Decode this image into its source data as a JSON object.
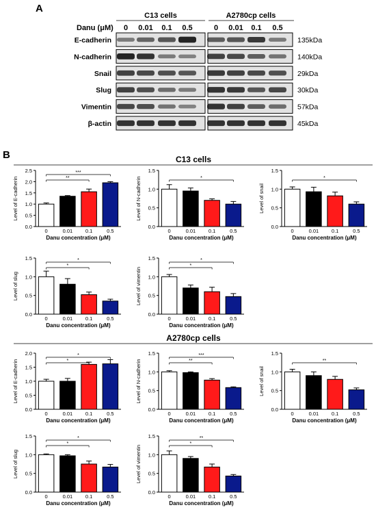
{
  "panel_a": {
    "label": "A",
    "header_treatment": "Danu (μM)",
    "cell_lines": [
      "C13 cells",
      "A2780cp  cells"
    ],
    "doses": [
      "0",
      "0.01",
      "0.1",
      "0.5"
    ],
    "rows": [
      {
        "protein": "E-cadherin",
        "size": "135kDa",
        "c13": [
          0.35,
          0.5,
          0.6,
          0.95
        ],
        "a2780": [
          0.55,
          0.6,
          0.8,
          0.35
        ]
      },
      {
        "protein": "N-cadherin",
        "size": "140kDa",
        "c13": [
          0.95,
          0.85,
          0.35,
          0.3
        ],
        "a2780": [
          0.75,
          0.7,
          0.55,
          0.4
        ]
      },
      {
        "protein": "Snail",
        "size": "29kDa",
        "c13": [
          0.75,
          0.7,
          0.65,
          0.6
        ],
        "a2780": [
          0.8,
          0.75,
          0.7,
          0.65
        ]
      },
      {
        "protein": "Slug",
        "size": "30kDa",
        "c13": [
          0.75,
          0.65,
          0.45,
          0.35
        ],
        "a2780": [
          0.85,
          0.8,
          0.6,
          0.7
        ]
      },
      {
        "protein": "Vimentin",
        "size": "57kDa",
        "c13": [
          0.7,
          0.65,
          0.4,
          0.3
        ],
        "a2780": [
          0.85,
          0.75,
          0.55,
          0.45
        ]
      },
      {
        "protein": "β-actin",
        "size": "45kDa",
        "c13": [
          0.85,
          0.85,
          0.85,
          0.85
        ],
        "a2780": [
          0.85,
          0.85,
          0.85,
          0.85
        ]
      }
    ]
  },
  "panel_b": {
    "label": "B",
    "group_titles": [
      "C13 cells",
      "A2780cp cells"
    ]
  },
  "colors": {
    "bar_0": "#ffffff",
    "bar_0.01": "#000000",
    "bar_0.1": "#ff1a1a",
    "bar_0.5": "#0a1a8c"
  },
  "chart_data": [
    {
      "type": "bar",
      "group": "C13 cells",
      "ylabel": "Level of E-cadherin",
      "xlabel": "Danu concentration (μM)",
      "categories": [
        "0",
        "0.01",
        "0.1",
        "0.5"
      ],
      "values": [
        1.0,
        1.35,
        1.55,
        1.95
      ],
      "errors": [
        0.05,
        0.03,
        0.12,
        0.05
      ],
      "ylim": [
        0,
        2.5
      ],
      "yticks": [
        "0.0",
        "0.5",
        "1.0",
        "1.5",
        "2.0",
        "2.5"
      ],
      "significance": [
        {
          "from": "0",
          "to": "0.1",
          "label": "**"
        },
        {
          "from": "0",
          "to": "0.5",
          "label": "***"
        }
      ]
    },
    {
      "type": "bar",
      "group": "C13 cells",
      "ylabel": "Level of N-cadherin",
      "xlabel": "Danu concentration (μM)",
      "categories": [
        "0",
        "0.01",
        "0.1",
        "0.5"
      ],
      "values": [
        1.0,
        0.95,
        0.7,
        0.6
      ],
      "errors": [
        0.12,
        0.08,
        0.04,
        0.07
      ],
      "ylim": [
        0,
        1.5
      ],
      "yticks": [
        "0.0",
        "0.5",
        "1.0",
        "1.5"
      ],
      "significance": [
        {
          "from": "0",
          "to": "0.5",
          "label": "*"
        }
      ]
    },
    {
      "type": "bar",
      "group": "C13 cells",
      "ylabel": "Level of snail",
      "xlabel": "Danu concentration (μM)",
      "categories": [
        "0",
        "0.01",
        "0.1",
        "0.5"
      ],
      "values": [
        1.0,
        0.93,
        0.82,
        0.6
      ],
      "errors": [
        0.06,
        0.12,
        0.1,
        0.06
      ],
      "ylim": [
        0,
        1.5
      ],
      "yticks": [
        "0.0",
        "0.5",
        "1.0",
        "1.5"
      ],
      "significance": [
        {
          "from": "0",
          "to": "0.5",
          "label": "*"
        }
      ]
    },
    {
      "type": "bar",
      "group": "C13 cells",
      "ylabel": "Level of slug",
      "xlabel": "Danu concentration (μM)",
      "categories": [
        "0",
        "0.01",
        "0.1",
        "0.5"
      ],
      "values": [
        1.0,
        0.8,
        0.52,
        0.35
      ],
      "errors": [
        0.15,
        0.15,
        0.07,
        0.05
      ],
      "ylim": [
        0,
        1.5
      ],
      "yticks": [
        "0.0",
        "0.5",
        "1.0",
        "1.5"
      ],
      "significance": [
        {
          "from": "0",
          "to": "0.1",
          "label": "*"
        },
        {
          "from": "0",
          "to": "0.5",
          "label": "*"
        }
      ]
    },
    {
      "type": "bar",
      "group": "C13 cells",
      "ylabel": "Level of vimentin",
      "xlabel": "Danu concentration (μM)",
      "categories": [
        "0",
        "0.01",
        "0.1",
        "0.5"
      ],
      "values": [
        1.0,
        0.7,
        0.6,
        0.47
      ],
      "errors": [
        0.06,
        0.08,
        0.12,
        0.08
      ],
      "ylim": [
        0,
        1.5
      ],
      "yticks": [
        "0.0",
        "0.5",
        "1.0",
        "1.5"
      ],
      "significance": [
        {
          "from": "0",
          "to": "0.1",
          "label": "*"
        },
        {
          "from": "0",
          "to": "0.5",
          "label": "*"
        }
      ]
    },
    {
      "type": "bar",
      "group": "A2780cp cells",
      "ylabel": "Level of E-cadherin",
      "xlabel": "Danu concentration (μM)",
      "categories": [
        "0",
        "0.01",
        "0.1",
        "0.5"
      ],
      "values": [
        1.0,
        1.0,
        1.6,
        1.62
      ],
      "errors": [
        0.07,
        0.1,
        0.08,
        0.15
      ],
      "ylim": [
        0,
        2.0
      ],
      "yticks": [
        "0.0",
        "0.5",
        "1.0",
        "1.5",
        "2.0"
      ],
      "significance": [
        {
          "from": "0",
          "to": "0.1",
          "label": "*"
        },
        {
          "from": "0",
          "to": "0.5",
          "label": "*"
        }
      ]
    },
    {
      "type": "bar",
      "group": "A2780cp cells",
      "ylabel": "Level of N-cadherin",
      "xlabel": "Danu concentration (μM)",
      "categories": [
        "0",
        "0.01",
        "0.1",
        "0.5"
      ],
      "values": [
        1.0,
        0.98,
        0.78,
        0.58
      ],
      "errors": [
        0.03,
        0.02,
        0.04,
        0.02
      ],
      "ylim": [
        0,
        1.5
      ],
      "yticks": [
        "0.0",
        "0.5",
        "1.0",
        "1.5"
      ],
      "significance": [
        {
          "from": "0",
          "to": "0.1",
          "label": "**"
        },
        {
          "from": "0",
          "to": "0.5",
          "label": "***"
        }
      ]
    },
    {
      "type": "bar",
      "group": "A2780cp cells",
      "ylabel": "Level of snail",
      "xlabel": "Danu concentration (μM)",
      "categories": [
        "0",
        "0.01",
        "0.1",
        "0.5"
      ],
      "values": [
        1.0,
        0.9,
        0.8,
        0.52
      ],
      "errors": [
        0.07,
        0.1,
        0.08,
        0.05
      ],
      "ylim": [
        0,
        1.5
      ],
      "yticks": [
        "0.0",
        "0.5",
        "1.0",
        "1.5"
      ],
      "significance": [
        {
          "from": "0",
          "to": "0.5",
          "label": "**"
        }
      ]
    },
    {
      "type": "bar",
      "group": "A2780cp cells",
      "ylabel": "Level of slug",
      "xlabel": "Danu concentration (μM)",
      "categories": [
        "0",
        "0.01",
        "0.1",
        "0.5"
      ],
      "values": [
        1.0,
        0.97,
        0.75,
        0.67
      ],
      "errors": [
        0.02,
        0.03,
        0.08,
        0.07
      ],
      "ylim": [
        0,
        1.5
      ],
      "yticks": [
        "0.0",
        "0.5",
        "1.0",
        "1.5"
      ],
      "significance": [
        {
          "from": "0",
          "to": "0.1",
          "label": "*"
        },
        {
          "from": "0",
          "to": "0.5",
          "label": "*"
        }
      ]
    },
    {
      "type": "bar",
      "group": "A2780cp cells",
      "ylabel": "Level of vimentin",
      "xlabel": "Danu concentration (μM)",
      "categories": [
        "0",
        "0.01",
        "0.1",
        "0.5"
      ],
      "values": [
        1.0,
        0.9,
        0.67,
        0.43
      ],
      "errors": [
        0.1,
        0.05,
        0.08,
        0.04
      ],
      "ylim": [
        0,
        1.5
      ],
      "yticks": [
        "0.0",
        "0.5",
        "1.0",
        "1.5"
      ],
      "significance": [
        {
          "from": "0",
          "to": "0.1",
          "label": "*"
        },
        {
          "from": "0",
          "to": "0.5",
          "label": "**"
        }
      ]
    }
  ]
}
